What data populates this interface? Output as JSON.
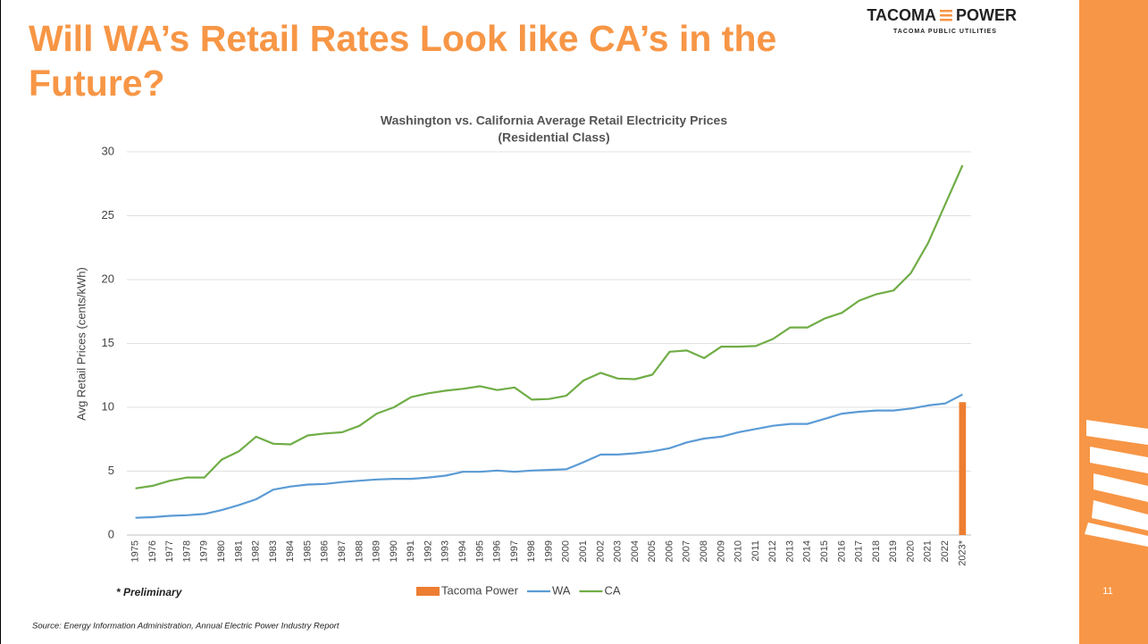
{
  "slide": {
    "title_lines": [
      "Will WA’s Retail Rates Look like CA’s in the",
      "Future?"
    ],
    "logo": {
      "left": "TACOMA",
      "right": "POWER",
      "sub": "TACOMA PUBLIC UTILITIES"
    },
    "footnote": "* Preliminary",
    "source": "Source: Energy Information Administration, Annual Electric Power Industry Report",
    "page_number": "11"
  },
  "chart_data": {
    "type": "line",
    "title": "Washington vs. California Average Retail Electricity Prices",
    "subtitle": "(Residential Class)",
    "y_label": "Avg Retail Prices (cents/kWh)",
    "categories": [
      "1975",
      "1976",
      "1977",
      "1978",
      "1979",
      "1980",
      "1981",
      "1982",
      "1983",
      "1984",
      "1985",
      "1986",
      "1987",
      "1988",
      "1989",
      "1990",
      "1991",
      "1992",
      "1993",
      "1994",
      "1995",
      "1996",
      "1997",
      "1998",
      "1999",
      "2000",
      "2001",
      "2002",
      "2003",
      "2004",
      "2005",
      "2006",
      "2007",
      "2008",
      "2009",
      "2010",
      "2011",
      "2012",
      "2013",
      "2014",
      "2015",
      "2016",
      "2017",
      "2018",
      "2019",
      "2020",
      "2021",
      "2022",
      "2023*"
    ],
    "series": [
      {
        "name": "Tacoma Power",
        "kind": "bar",
        "color": "#ed7d31",
        "values": [
          null,
          null,
          null,
          null,
          null,
          null,
          null,
          null,
          null,
          null,
          null,
          null,
          null,
          null,
          null,
          null,
          null,
          null,
          null,
          null,
          null,
          null,
          null,
          null,
          null,
          null,
          null,
          null,
          null,
          null,
          null,
          null,
          null,
          null,
          null,
          null,
          null,
          null,
          null,
          null,
          null,
          null,
          null,
          null,
          null,
          null,
          null,
          null,
          10.4
        ]
      },
      {
        "name": "WA",
        "kind": "line",
        "color": "#5b9bd5",
        "values": [
          1.35,
          1.4,
          1.5,
          1.55,
          1.65,
          1.95,
          2.35,
          2.8,
          3.55,
          3.8,
          3.95,
          4.0,
          4.15,
          4.25,
          4.35,
          4.4,
          4.4,
          4.5,
          4.65,
          4.95,
          4.95,
          5.05,
          4.95,
          5.05,
          5.1,
          5.15,
          5.7,
          6.3,
          6.3,
          6.4,
          6.55,
          6.8,
          7.25,
          7.55,
          7.7,
          8.05,
          8.3,
          8.55,
          8.7,
          8.7,
          9.1,
          9.5,
          9.65,
          9.75,
          9.75,
          9.9,
          10.15,
          10.3,
          11.0
        ]
      },
      {
        "name": "CA",
        "kind": "line",
        "color": "#70ad47",
        "values": [
          3.65,
          3.85,
          4.25,
          4.5,
          4.5,
          5.9,
          6.55,
          7.7,
          7.15,
          7.1,
          7.8,
          7.95,
          8.05,
          8.55,
          9.5,
          10.0,
          10.8,
          11.1,
          11.3,
          11.45,
          11.65,
          11.35,
          11.55,
          10.6,
          10.65,
          10.9,
          12.1,
          12.7,
          12.25,
          12.2,
          12.55,
          14.35,
          14.45,
          13.85,
          14.75,
          14.75,
          14.8,
          15.35,
          16.25,
          16.25,
          16.95,
          17.4,
          18.35,
          18.85,
          19.15,
          20.5,
          22.85,
          25.9,
          28.95
        ]
      }
    ],
    "ylim": [
      0,
      30
    ],
    "yticks": [
      0,
      5,
      10,
      15,
      20,
      25,
      30
    ],
    "grid": true
  }
}
